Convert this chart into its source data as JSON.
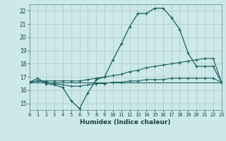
{
  "xlabel": "Humidex (Indice chaleur)",
  "ylabel": "",
  "bg_color": "#cce8e8",
  "grid_color": "#b0c8c8",
  "line_color": "#1a6060",
  "xmin": 0,
  "xmax": 23,
  "ymin": 14.5,
  "ymax": 22.5,
  "yticks": [
    15,
    16,
    17,
    18,
    19,
    20,
    21,
    22
  ],
  "xticks": [
    0,
    1,
    2,
    3,
    4,
    5,
    6,
    7,
    8,
    9,
    10,
    11,
    12,
    13,
    14,
    15,
    16,
    17,
    18,
    19,
    20,
    21,
    22,
    23
  ],
  "line1_x": [
    0,
    1,
    2,
    3,
    4,
    5,
    6,
    7,
    8,
    9,
    10,
    11,
    12,
    13,
    14,
    15,
    16,
    17,
    18,
    19,
    20,
    21,
    22,
    23
  ],
  "line1_y": [
    16.6,
    16.9,
    16.5,
    16.4,
    16.2,
    15.2,
    14.6,
    15.8,
    16.8,
    17.0,
    18.3,
    19.5,
    20.8,
    21.8,
    21.8,
    22.2,
    22.2,
    21.5,
    20.6,
    18.8,
    17.8,
    17.8,
    17.8,
    16.6
  ],
  "line2_x": [
    0,
    1,
    2,
    3,
    4,
    5,
    6,
    7,
    8,
    9,
    10,
    11,
    12,
    13,
    14,
    15,
    16,
    17,
    18,
    19,
    20,
    21,
    22,
    23
  ],
  "line2_y": [
    16.6,
    16.7,
    16.7,
    16.7,
    16.7,
    16.7,
    16.7,
    16.8,
    16.9,
    17.0,
    17.1,
    17.2,
    17.4,
    17.5,
    17.7,
    17.8,
    17.9,
    18.0,
    18.1,
    18.2,
    18.3,
    18.4,
    18.4,
    16.6
  ],
  "line3_x": [
    0,
    1,
    2,
    3,
    4,
    5,
    6,
    7,
    8,
    9,
    10,
    11,
    12,
    13,
    14,
    15,
    16,
    17,
    18,
    19,
    20,
    21,
    22,
    23
  ],
  "line3_y": [
    16.6,
    16.7,
    16.6,
    16.5,
    16.4,
    16.3,
    16.3,
    16.4,
    16.5,
    16.5,
    16.6,
    16.6,
    16.7,
    16.7,
    16.8,
    16.8,
    16.8,
    16.9,
    16.9,
    16.9,
    16.9,
    16.9,
    16.9,
    16.6
  ],
  "line4_x": [
    0,
    23
  ],
  "line4_y": [
    16.6,
    16.6
  ]
}
